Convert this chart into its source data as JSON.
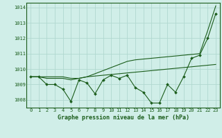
{
  "title": "Graphe pression niveau de la mer (hPa)",
  "x_labels": [
    0,
    1,
    2,
    3,
    4,
    5,
    6,
    7,
    8,
    9,
    10,
    11,
    12,
    13,
    14,
    15,
    16,
    17,
    18,
    19,
    20,
    21,
    22,
    23
  ],
  "ylim": [
    1007.5,
    1014.3
  ],
  "yticks": [
    1008,
    1009,
    1010,
    1011,
    1012,
    1013,
    1014
  ],
  "background_color": "#d0eee8",
  "grid_color": "#b0d8d0",
  "line_color": "#1a5c1a",
  "series1": [
    1009.5,
    1009.5,
    1009.0,
    1009.0,
    1008.7,
    1007.9,
    1009.3,
    1009.1,
    1008.4,
    1009.3,
    1009.6,
    1009.4,
    1009.6,
    1008.8,
    1008.5,
    1007.8,
    1007.8,
    1009.0,
    1008.5,
    1009.5,
    1010.7,
    1010.9,
    1012.0,
    1013.6
  ],
  "series2": [
    1009.5,
    1009.5,
    1009.5,
    1009.5,
    1009.5,
    1009.4,
    1009.4,
    1009.5,
    1009.55,
    1009.6,
    1009.65,
    1009.7,
    1009.75,
    1009.8,
    1009.85,
    1009.9,
    1009.95,
    1010.0,
    1010.05,
    1010.1,
    1010.15,
    1010.2,
    1010.25,
    1010.3
  ],
  "series3": [
    1009.5,
    1009.5,
    1009.4,
    1009.4,
    1009.4,
    1009.3,
    1009.4,
    1009.5,
    1009.7,
    1009.9,
    1010.1,
    1010.3,
    1010.5,
    1010.6,
    1010.65,
    1010.7,
    1010.75,
    1010.8,
    1010.85,
    1010.9,
    1010.95,
    1011.0,
    1012.5,
    1014.1
  ]
}
